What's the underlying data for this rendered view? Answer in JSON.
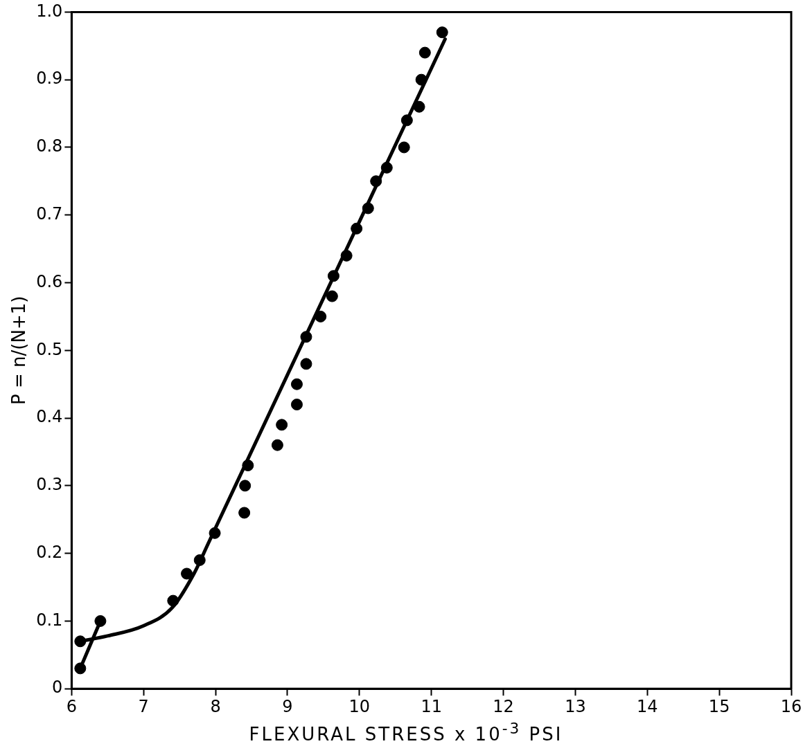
{
  "chart_data": {
    "type": "scatter",
    "xlabel": "FLEXURAL STRESS x 10$^{-3}$ PSI",
    "ylabel": "P = n/(N+1)",
    "xlim": [
      6,
      16
    ],
    "xticks": [
      6,
      7,
      8,
      9,
      10,
      11,
      12,
      13,
      14,
      15,
      16
    ],
    "ylim": [
      0,
      1
    ],
    "yticks": [
      {
        "value": 0,
        "label": "0"
      },
      0.1,
      0.2,
      0.3,
      0.4,
      0.5,
      0.6,
      0.7,
      0.8,
      0.9,
      {
        "value": 1,
        "label": "1.0"
      }
    ],
    "grid": false,
    "legend": false,
    "marker": "circle",
    "series": [
      {
        "color": "#000000",
        "x": [
          6.12,
          6.12,
          6.4,
          7.41,
          7.6,
          7.78,
          7.99,
          8.4,
          8.41,
          8.45,
          8.86,
          8.92,
          9.13,
          9.13,
          9.26,
          9.26,
          9.46,
          9.62,
          9.64,
          9.82,
          9.96,
          10.12,
          10.23,
          10.38,
          10.62,
          10.66,
          10.83,
          10.86,
          10.91,
          11.15
        ],
        "values": [
          0.03,
          0.07,
          0.1,
          0.13,
          0.17,
          0.19,
          0.23,
          0.26,
          0.3,
          0.33,
          0.36,
          0.39,
          0.42,
          0.45,
          0.48,
          0.52,
          0.55,
          0.58,
          0.61,
          0.64,
          0.68,
          0.71,
          0.75,
          0.77,
          0.8,
          0.84,
          0.86,
          0.9,
          0.94,
          0.97
        ]
      },
      {
        "type": "line",
        "color": "#000000",
        "marker": "none",
        "line_style": "solid",
        "x": [
          6.12,
          6.5,
          7.0,
          7.4,
          7.7,
          7.9,
          11.19
        ],
        "values": [
          0.07,
          0.078,
          0.093,
          0.12,
          0.17,
          0.215,
          0.96
        ]
      },
      {
        "type": "line",
        "color": "#000000",
        "marker": "none",
        "line_style": "solid",
        "x": [
          6.12,
          6.4
        ],
        "values": [
          0.03,
          0.1
        ]
      }
    ]
  }
}
